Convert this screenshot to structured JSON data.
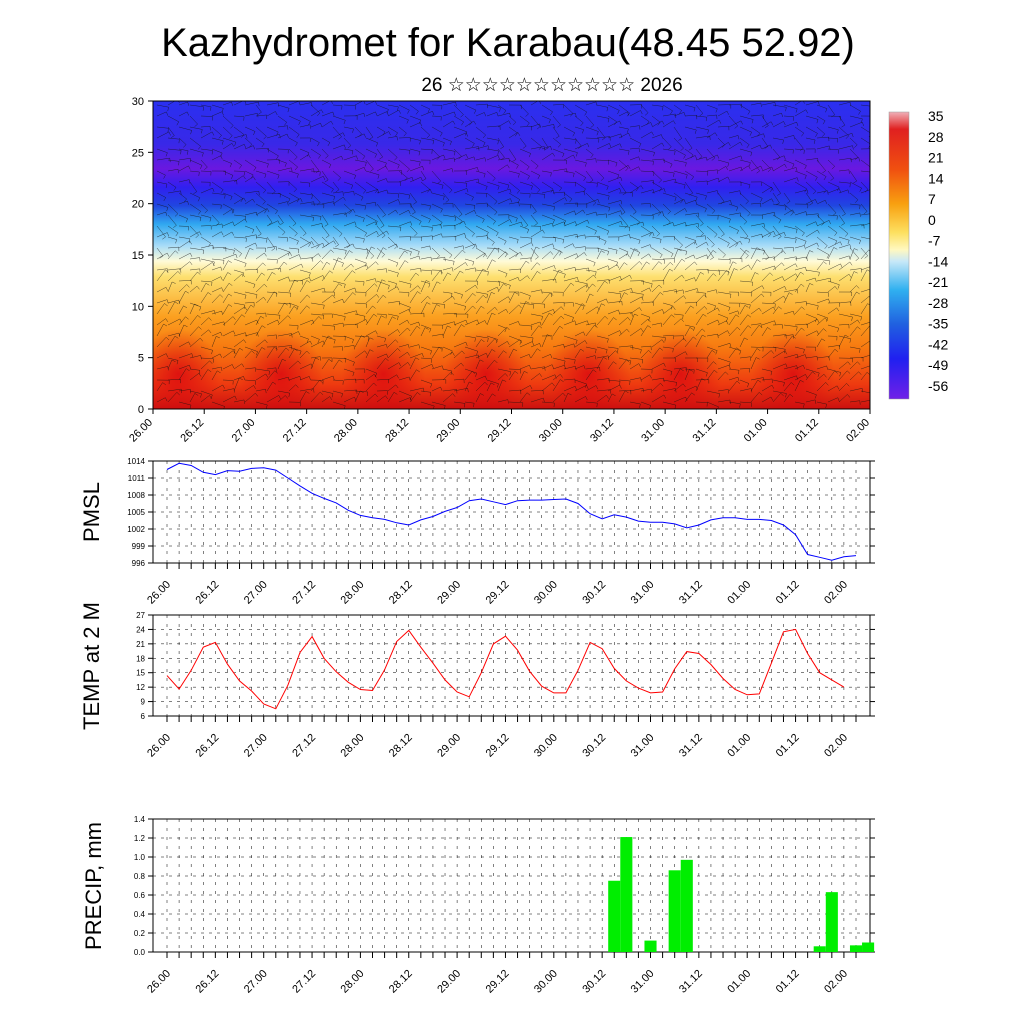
{
  "title": "Kazhydromet for Karabau(48.45 52.92)",
  "subtitle": "26 ☆☆☆☆☆☆☆☆☆☆☆ 2026",
  "colors": {
    "pmsl_line": "#0000ff",
    "temp_line": "#ff0000",
    "precip_bar": "#00ee00",
    "grid": "#000000"
  },
  "x_ticks": [
    "26.00",
    "26.12",
    "27.00",
    "27.12",
    "28.00",
    "28.12",
    "29.00",
    "29.12",
    "30.00",
    "30.12",
    "31.00",
    "31.12",
    "01.00",
    "01.12",
    "02.00"
  ],
  "chart_data": [
    {
      "type": "heatmap",
      "title": "",
      "ylabel": "",
      "ylim": [
        0,
        30
      ],
      "yticks": [
        0,
        5,
        10,
        15,
        20,
        25,
        30
      ],
      "colorbar": {
        "labels": [
          "35",
          "28",
          "21",
          "14",
          "7",
          "0",
          "-7",
          "-14",
          "-21",
          "-28",
          "-35",
          "-42",
          "-49",
          "-56"
        ],
        "range": [
          -60,
          38
        ]
      },
      "description_values": {
        "layers_height": [
          0,
          5,
          10,
          15,
          20,
          25,
          30
        ],
        "typical_temperature": [
          24,
          20,
          10,
          0,
          -30,
          -55,
          -50
        ]
      }
    },
    {
      "type": "line",
      "ylabel": "PMSL",
      "ylim": [
        996,
        1014
      ],
      "yticks": [
        996,
        999,
        1002,
        1005,
        1008,
        1011,
        1014
      ],
      "series": [
        {
          "values": [
            1012.5,
            1013.6,
            1013.2,
            1012.0,
            1011.6,
            1012.3,
            1012.2,
            1012.7,
            1012.8,
            1012.4,
            1011.0,
            1009.6,
            1008.3,
            1007.4,
            1006.6,
            1005.3,
            1004.4,
            1004.0,
            1003.7,
            1003.1,
            1002.7,
            1003.6,
            1004.2,
            1005.1,
            1005.8,
            1007.0,
            1007.3,
            1006.8,
            1006.3,
            1007.0,
            1007.1,
            1007.1,
            1007.2,
            1007.3,
            1006.5,
            1004.7,
            1003.8,
            1004.5,
            1004.1,
            1003.4,
            1003.2,
            1003.2,
            1002.9,
            1002.2,
            1002.7,
            1003.6,
            1004.0,
            1004.0,
            1003.7,
            1003.7,
            1003.5,
            1002.7,
            1001.0,
            997.5,
            997.0,
            996.5,
            997.1,
            997.3
          ]
        }
      ]
    },
    {
      "type": "line",
      "ylabel": "TEMP at 2 M",
      "ylim": [
        6,
        27
      ],
      "yticks": [
        6,
        9,
        12,
        15,
        18,
        21,
        24,
        27
      ],
      "series": [
        {
          "values": [
            14.4,
            11.6,
            15.5,
            20.3,
            21.3,
            16.8,
            13.3,
            11.2,
            8.5,
            7.5,
            12.4,
            19.2,
            22.5,
            18.0,
            15.2,
            13.0,
            11.5,
            11.3,
            15.6,
            21.5,
            23.8,
            20.3,
            17.0,
            13.5,
            11.0,
            10.0,
            15.0,
            21.0,
            22.6,
            19.7,
            15.3,
            12.2,
            10.8,
            10.8,
            15.5,
            21.3,
            20.0,
            15.9,
            13.3,
            11.8,
            10.8,
            11.0,
            15.8,
            19.4,
            19.0,
            16.7,
            13.8,
            11.5,
            10.4,
            10.6,
            17.0,
            23.5,
            24.0,
            19.0,
            15.0,
            13.5,
            12.0
          ]
        }
      ]
    },
    {
      "type": "bar",
      "ylabel": "PRECIP, mm",
      "ylim": [
        0,
        1.4
      ],
      "yticks": [
        "0.0",
        "0.2",
        "0.4",
        "0.6",
        "0.8",
        "1.0",
        "1.2",
        "1.4"
      ],
      "bars": [
        {
          "x": 37,
          "value": 0.75
        },
        {
          "x": 38,
          "value": 1.21
        },
        {
          "x": 40,
          "value": 0.12
        },
        {
          "x": 42,
          "value": 0.86
        },
        {
          "x": 43,
          "value": 0.97
        },
        {
          "x": 54,
          "value": 0.06
        },
        {
          "x": 55,
          "value": 0.63
        },
        {
          "x": 57,
          "value": 0.07
        },
        {
          "x": 58,
          "value": 0.1
        }
      ]
    }
  ]
}
